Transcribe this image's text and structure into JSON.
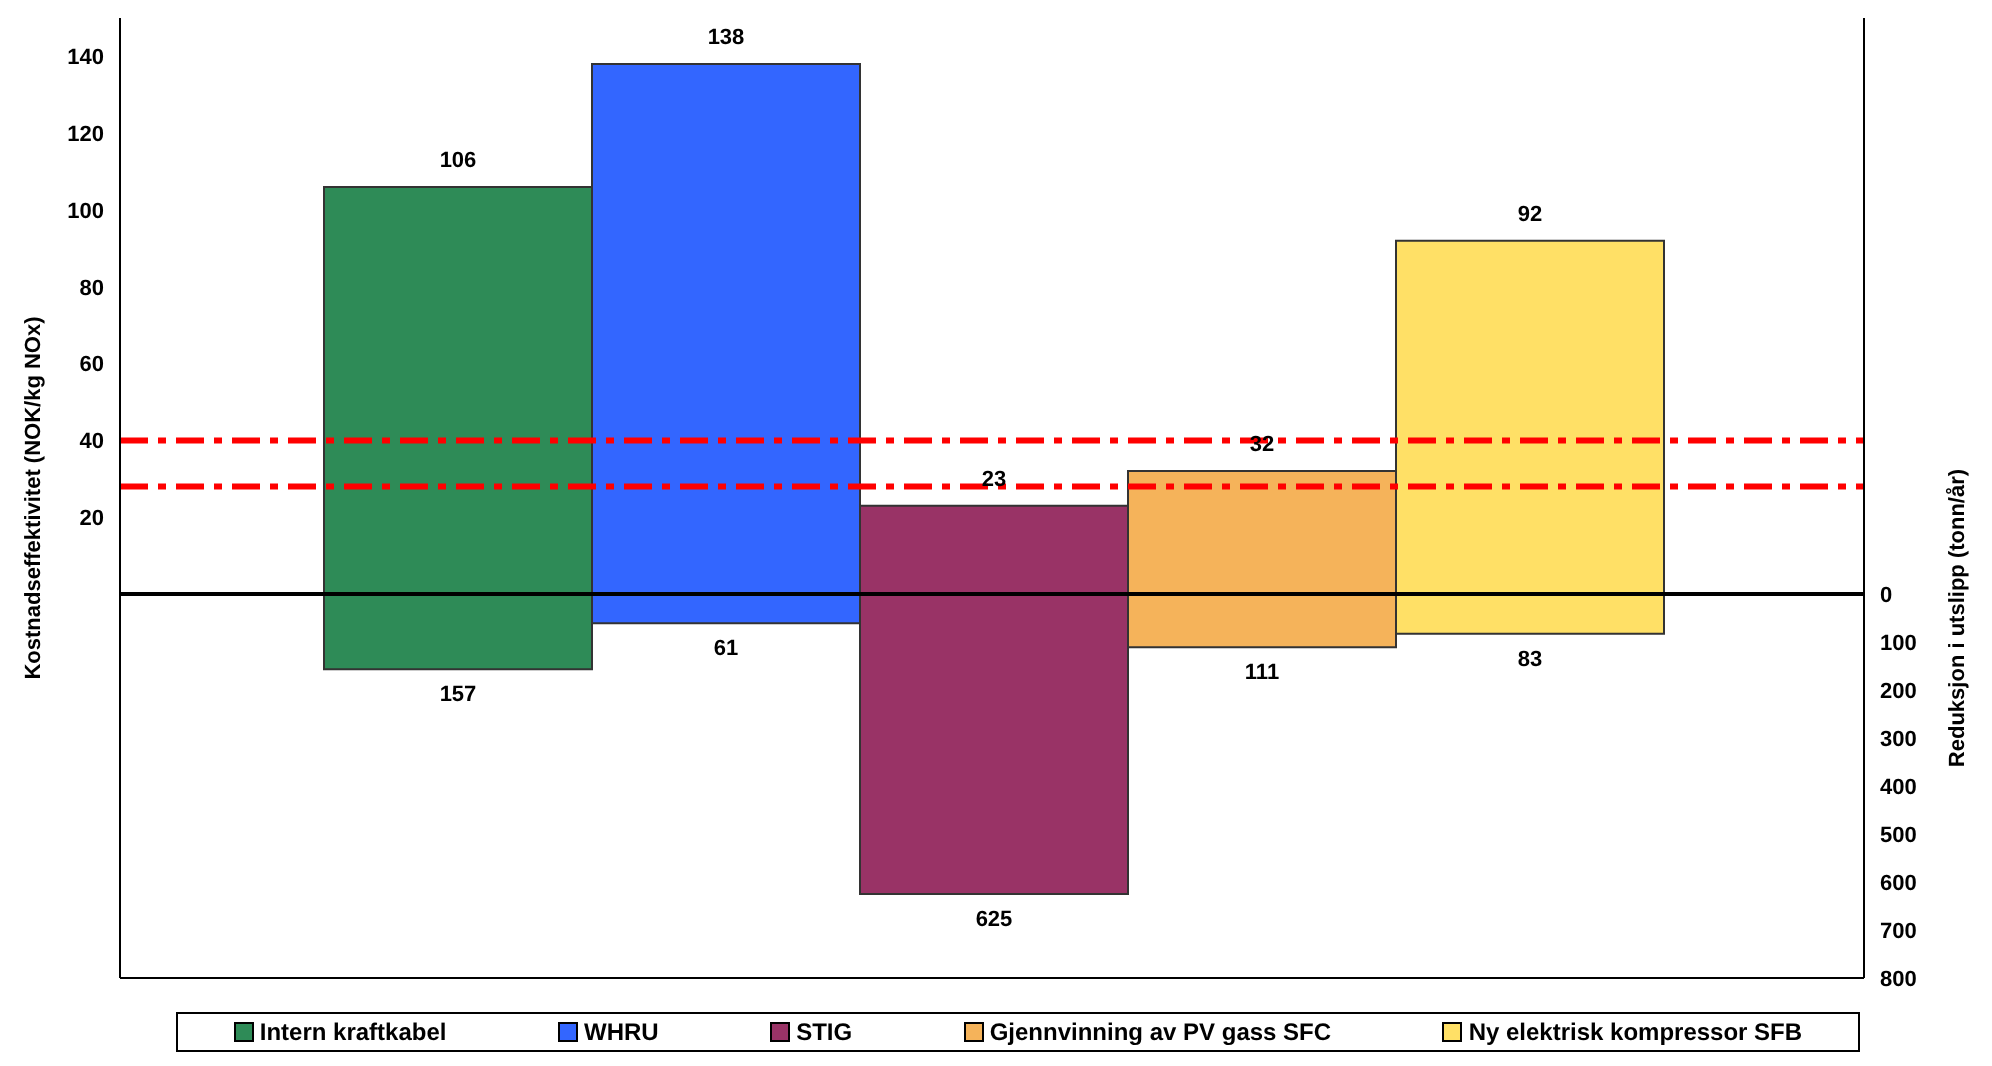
{
  "chart_data": {
    "type": "bar",
    "ylabel": "Kostnadseffektivitet (NOK/kg NOx)",
    "y2label": "Reduksjon i utslipp (tonn/år)",
    "categories": [
      null,
      null,
      null,
      null,
      null
    ],
    "series": [
      {
        "name": "Intern kraftkabel",
        "color": "#2e8b57",
        "values": [
          106,
          null,
          null,
          null,
          null
        ]
      },
      {
        "name": "WHRU",
        "color": "#3366ff",
        "values": [
          null,
          138,
          null,
          null,
          null
        ]
      },
      {
        "name": "STIG",
        "color": "#993366",
        "values": [
          null,
          null,
          23,
          null,
          null
        ]
      },
      {
        "name": "Gjennvinning av PV gass SFC",
        "color": "#f5b35a",
        "values": [
          null,
          null,
          null,
          32,
          null
        ]
      },
      {
        "name": "Ny elektrisk kompressor SFB",
        "color": "#ffe066",
        "values": [
          null,
          null,
          null,
          null,
          92
        ]
      },
      {
        "color": "#2e8b57",
        "axis": "y2",
        "values": [
          157,
          null,
          null,
          null,
          null
        ]
      },
      {
        "color": "#3366ff",
        "axis": "y2",
        "values": [
          null,
          61,
          null,
          null,
          null
        ]
      },
      {
        "color": "#993366",
        "axis": "y2",
        "values": [
          null,
          null,
          625,
          null,
          null
        ]
      },
      {
        "color": "#f5b35a",
        "axis": "y2",
        "values": [
          null,
          null,
          null,
          111,
          null
        ]
      },
      {
        "color": "#ffe066",
        "axis": "y2",
        "values": [
          null,
          null,
          null,
          null,
          83
        ]
      }
    ],
    "ylim": [
      -100,
      150
    ],
    "yticks": [
      20,
      40,
      60,
      80,
      100,
      120,
      140
    ],
    "stacked": true,
    "y2lim": [
      800,
      -1200
    ],
    "y2ticks": [
      0,
      100,
      200,
      300,
      400,
      500,
      600,
      700,
      800
    ],
    "ref_lines": [
      {
        "axis": "y",
        "value": 40,
        "color": "#ff0000",
        "line_style": "dashed"
      },
      {
        "axis": "y",
        "value": 28,
        "color": "#ff0000",
        "line_style": "dashed"
      }
    ],
    "data_labels": true,
    "legend": "bottom"
  }
}
